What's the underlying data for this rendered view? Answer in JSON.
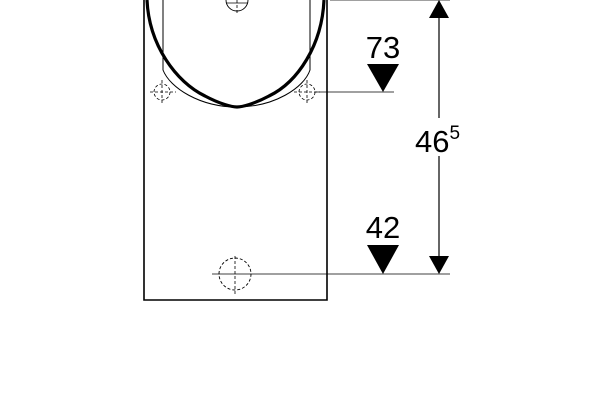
{
  "dimensions": {
    "top_mark": "73",
    "bottom_mark": "42",
    "total_height_main": "46",
    "total_height_sup": "5"
  }
}
